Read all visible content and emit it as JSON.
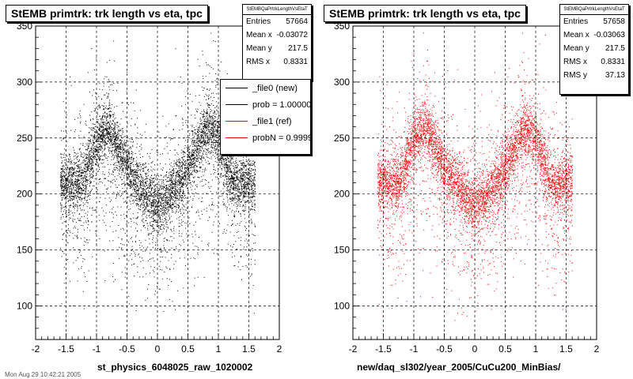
{
  "chart_data": [
    {
      "type": "scatter",
      "title": "StEMB primtrk: trk length vs eta, tpc",
      "xlabel": "st_physics_6048025_raw_1020002",
      "ylabel": "",
      "xlim": [
        -2,
        2
      ],
      "ylim": [
        70,
        350
      ],
      "xticks": [
        "-2",
        "-1.5",
        "-1",
        "-0.5",
        "0",
        "0.5",
        "1",
        "1.5",
        "2"
      ],
      "yticks": [
        "100",
        "150",
        "200",
        "250",
        "300",
        "350"
      ],
      "grid": true,
      "marker_color": "#000000",
      "density_profile": {
        "eta": [
          -1.6,
          -1.4,
          -1.2,
          -1.0,
          -0.8,
          -0.6,
          -0.4,
          -0.2,
          0.0,
          0.2,
          0.4,
          0.6,
          0.8,
          1.0,
          1.2,
          1.4,
          1.6
        ],
        "track_length_peak": [
          210,
          210,
          215,
          250,
          260,
          235,
          215,
          200,
          190,
          200,
          215,
          235,
          260,
          250,
          215,
          210,
          210
        ]
      },
      "stats": {
        "header": "StEMBQaPrtrkLengthVsEtaT",
        "rows": [
          {
            "label": "Entries",
            "value": "57664"
          },
          {
            "label": "Mean x",
            "value": "-0.03072"
          },
          {
            "label": "Mean y",
            "value": "217.5"
          },
          {
            "label": "RMS x",
            "value": "0.8331"
          }
        ]
      }
    },
    {
      "type": "scatter",
      "title": "StEMB primtrk: trk length vs eta, tpc",
      "xlabel": "new/daq_sl302/year_2005/CuCu200_MinBias/",
      "ylabel": "",
      "xlim": [
        -2,
        2
      ],
      "ylim": [
        70,
        350
      ],
      "xticks": [
        "-2",
        "-1.5",
        "-1",
        "-0.5",
        "0",
        "0.5",
        "1",
        "1.5",
        "2"
      ],
      "yticks": [
        "100",
        "150",
        "200",
        "250",
        "300",
        "350"
      ],
      "grid": true,
      "marker_color": "#ff0000",
      "density_profile": {
        "eta": [
          -1.6,
          -1.4,
          -1.2,
          -1.0,
          -0.8,
          -0.6,
          -0.4,
          -0.2,
          0.0,
          0.2,
          0.4,
          0.6,
          0.8,
          1.0,
          1.2,
          1.4,
          1.6
        ],
        "track_length_peak": [
          210,
          210,
          215,
          250,
          260,
          235,
          215,
          200,
          190,
          200,
          215,
          235,
          260,
          250,
          215,
          210,
          210
        ]
      },
      "stats": {
        "header": "StEMBQaPrtrkLengthVsEtaT",
        "rows": [
          {
            "label": "Entries",
            "value": "57658"
          },
          {
            "label": "Mean x",
            "value": "-0.03063"
          },
          {
            "label": "Mean y",
            "value": "217.5"
          },
          {
            "label": "RMS x",
            "value": "0.8331"
          },
          {
            "label": "RMS y",
            "value": "37.13"
          }
        ]
      }
    }
  ],
  "legend": {
    "entries": [
      {
        "label": "_file0 (new)",
        "color": "#000000"
      },
      {
        "label": "prob = 1.000000",
        "color": "#000000"
      },
      {
        "label": "_file1 (ref)",
        "color": "#ff0000"
      },
      {
        "label": "probN = 0.999900",
        "color": "#ff0000"
      }
    ]
  },
  "footer": "Mon Aug 29 10:42:21 2005"
}
